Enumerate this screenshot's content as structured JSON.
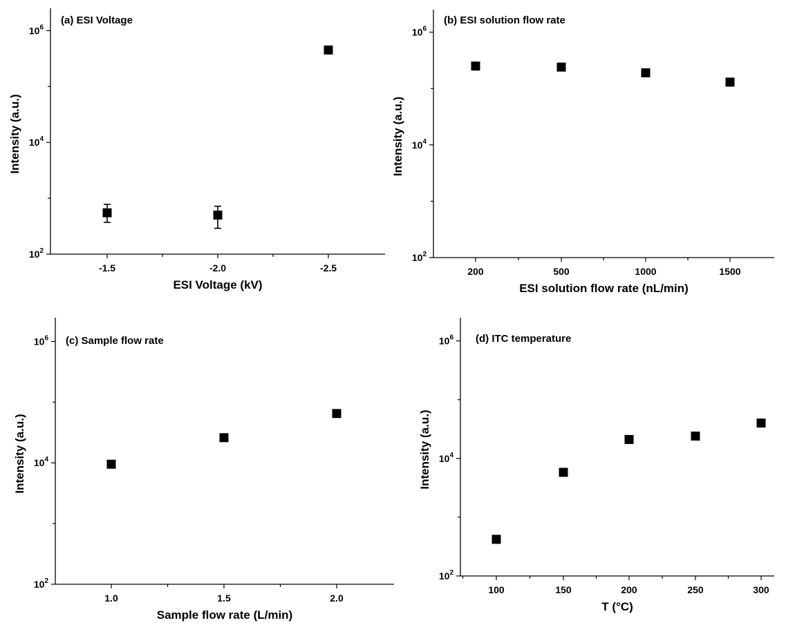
{
  "chart_data": [
    {
      "id": "a",
      "type": "scatter",
      "title": "(a) ESI Voltage",
      "xlabel": "ESI Voltage (kV)",
      "ylabel": "Intensity (a.u.)",
      "yscale": "log",
      "ylim": [
        100,
        2000000
      ],
      "yticks": [
        {
          "base": "10",
          "exp": "2"
        },
        {
          "base": "10",
          "exp": "4"
        },
        {
          "base": "10",
          "exp": "6"
        }
      ],
      "categories": [
        "-1.5",
        "-2.0",
        "-2.5"
      ],
      "values": [
        550,
        500,
        450000
      ],
      "errors_low": [
        370,
        290,
        420000
      ],
      "errors_high": [
        780,
        720,
        480000
      ]
    },
    {
      "id": "b",
      "type": "scatter",
      "title": "(b) ESI solution flow rate",
      "xlabel": "ESI solution flow rate (nL/min)",
      "ylabel": "Intensity (a.u.)",
      "yscale": "log",
      "ylim": [
        100,
        2000000
      ],
      "yticks": [
        {
          "base": "10",
          "exp": "2"
        },
        {
          "base": "10",
          "exp": "4"
        },
        {
          "base": "10",
          "exp": "6"
        }
      ],
      "categories": [
        "200",
        "500",
        "1000",
        "1500"
      ],
      "values": [
        250000,
        240000,
        190000,
        130000
      ],
      "errors_low": [
        230000,
        220000,
        175000,
        120000
      ],
      "errors_high": [
        270000,
        260000,
        205000,
        140000
      ]
    },
    {
      "id": "c",
      "type": "scatter",
      "title": "(c) Sample flow rate",
      "xlabel": "Sample flow rate (L/min)",
      "ylabel": "Intensity (a.u.)",
      "yscale": "log",
      "ylim": [
        100,
        2000000
      ],
      "yticks": [
        {
          "base": "10",
          "exp": "2"
        },
        {
          "base": "10",
          "exp": "4"
        },
        {
          "base": "10",
          "exp": "6"
        }
      ],
      "categories": [
        "1.0",
        "1.5",
        "2.0"
      ],
      "values": [
        9500,
        26000,
        65000
      ],
      "errors_low": [
        8800,
        24000,
        61000
      ],
      "errors_high": [
        10200,
        28000,
        69000
      ]
    },
    {
      "id": "d",
      "type": "scatter",
      "title": "(d) ITC temperature",
      "xlabel": "T (°C)",
      "ylabel": "Intensity (a.u.)",
      "yscale": "log",
      "ylim": [
        100,
        2000000
      ],
      "yticks": [
        {
          "base": "10",
          "exp": "2"
        },
        {
          "base": "10",
          "exp": "4"
        },
        {
          "base": "10",
          "exp": "6"
        }
      ],
      "categories": [
        "100",
        "150",
        "200",
        "250",
        "300"
      ],
      "values": [
        420,
        5800,
        21000,
        24000,
        40000
      ],
      "errors_low": [
        390,
        5400,
        19500,
        22500,
        37500
      ],
      "errors_high": [
        450,
        6200,
        22500,
        25500,
        42500
      ]
    }
  ]
}
